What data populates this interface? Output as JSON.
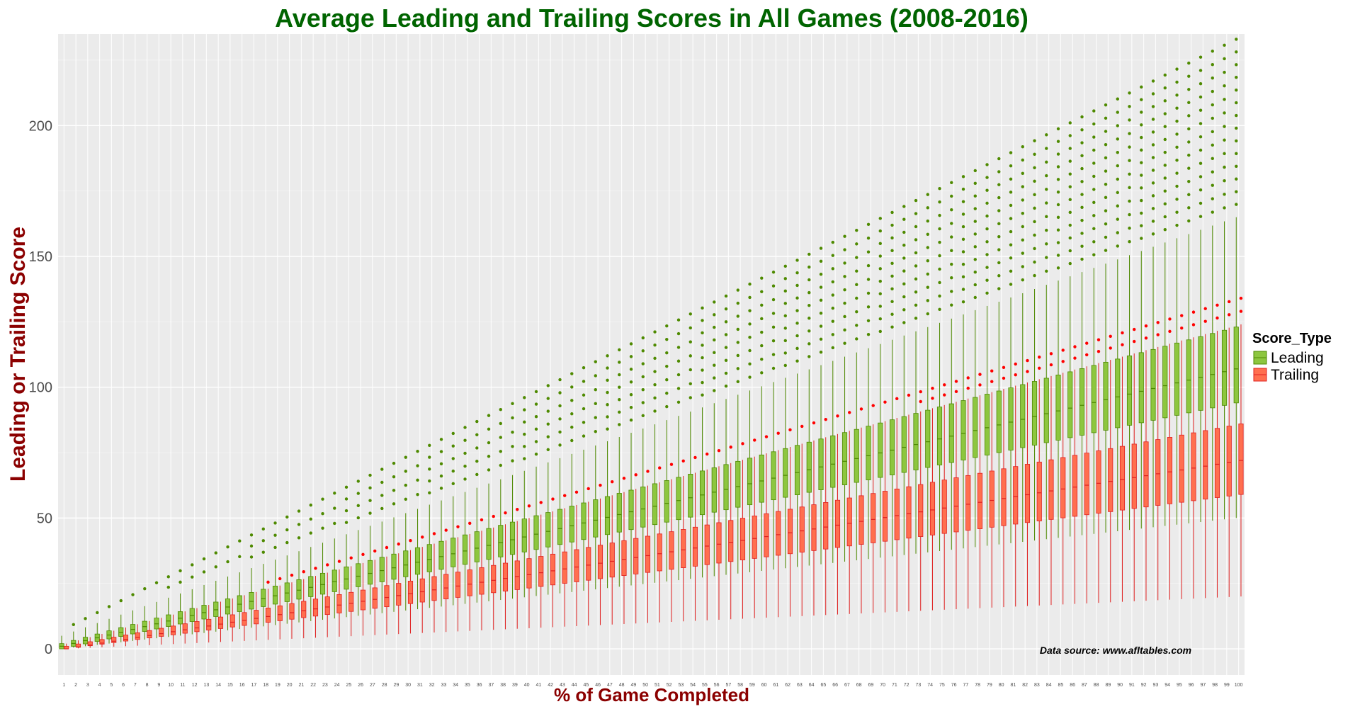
{
  "chart_data": {
    "type": "box",
    "title": "Average Leading and Trailing Scores in All Games (2008-2016)",
    "xlabel": "% of Game Completed",
    "ylabel": "Leading or Trailing Score",
    "x": [
      1,
      100
    ],
    "ylim": [
      -10,
      235
    ],
    "yticks": [
      0,
      50,
      100,
      150,
      200
    ],
    "grid": true,
    "legend": {
      "title": "Score_Type",
      "position": "right"
    },
    "note": "Data source: www.afltables.com",
    "series": [
      {
        "name": "Leading",
        "color": "#8DC63F",
        "outline": "#4E8A00",
        "outlier_color": "#4E8A00",
        "median_start": 1,
        "median_end": 107,
        "q1_start": 0,
        "q1_end": 94,
        "q3_start": 2,
        "q3_end": 123,
        "whisker_hi_start": 5,
        "whisker_hi_end": 165,
        "whisker_lo_start": 0,
        "whisker_lo_end": 50,
        "max_outlier_start": 7,
        "max_outlier_end": 233
      },
      {
        "name": "Trailing",
        "color": "#FF6F4F",
        "outline": "#E02020",
        "outlier_color": "#FF0000",
        "median_start": 0,
        "median_end": 72,
        "q1_start": 0,
        "q1_end": 59,
        "q3_start": 1,
        "q3_end": 86,
        "whisker_hi_start": 2,
        "whisker_hi_end": 124,
        "whisker_lo_start": 0,
        "whisker_lo_end": 20,
        "max_outlier_start": 3,
        "max_outlier_end": 134
      }
    ]
  }
}
